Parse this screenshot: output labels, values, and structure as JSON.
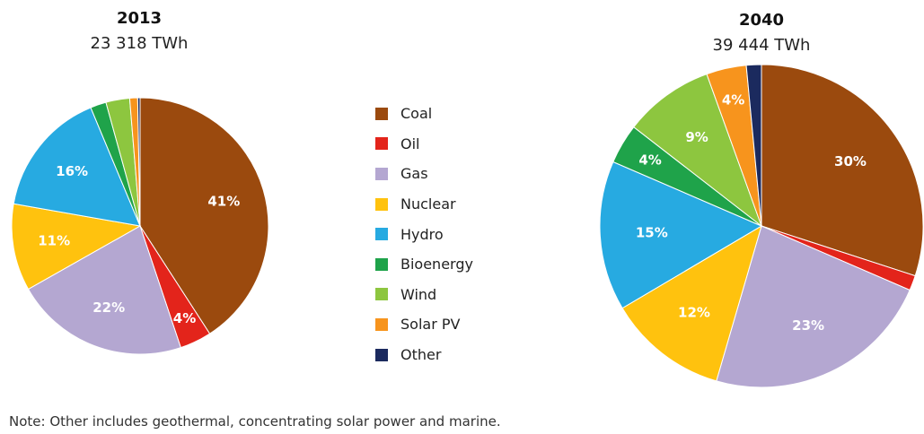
{
  "chart_data": [
    {
      "type": "pie",
      "title": "2013",
      "subtitle": "23 318 TWh",
      "slices": [
        {
          "name": "Coal",
          "value": 41,
          "label": "41%"
        },
        {
          "name": "Oil",
          "value": 4,
          "label": "4%"
        },
        {
          "name": "Gas",
          "value": 22,
          "label": "22%"
        },
        {
          "name": "Nuclear",
          "value": 11,
          "label": "11%"
        },
        {
          "name": "Hydro",
          "value": 16,
          "label": "16%"
        },
        {
          "name": "Bioenergy",
          "value": 2,
          "label": ""
        },
        {
          "name": "Wind",
          "value": 3,
          "label": ""
        },
        {
          "name": "Solar PV",
          "value": 1,
          "label": ""
        },
        {
          "name": "Other",
          "value": 0.3,
          "label": ""
        }
      ]
    },
    {
      "type": "pie",
      "title": "2040",
      "subtitle": "39 444 TWh",
      "slices": [
        {
          "name": "Coal",
          "value": 30,
          "label": "30%"
        },
        {
          "name": "Oil",
          "value": 1.5,
          "label": ""
        },
        {
          "name": "Gas",
          "value": 23,
          "label": "23%"
        },
        {
          "name": "Nuclear",
          "value": 12,
          "label": "12%"
        },
        {
          "name": "Hydro",
          "value": 15,
          "label": "15%"
        },
        {
          "name": "Bioenergy",
          "value": 4,
          "label": "4%"
        },
        {
          "name": "Wind",
          "value": 9,
          "label": "9%"
        },
        {
          "name": "Solar PV",
          "value": 4,
          "label": "4%"
        },
        {
          "name": "Other",
          "value": 1.5,
          "label": ""
        }
      ]
    }
  ],
  "legend": {
    "placement": "center",
    "items": [
      {
        "name": "Coal",
        "color": "#9B4A0E"
      },
      {
        "name": "Oil",
        "color": "#E3241B"
      },
      {
        "name": "Gas",
        "color": "#B4A7D1"
      },
      {
        "name": "Nuclear",
        "color": "#FFC20E"
      },
      {
        "name": "Hydro",
        "color": "#27AAE1"
      },
      {
        "name": "Bioenergy",
        "color": "#1FA34A"
      },
      {
        "name": "Wind",
        "color": "#8DC63F"
      },
      {
        "name": "Solar PV",
        "color": "#F7941D"
      },
      {
        "name": "Other",
        "color": "#1B2A5E"
      }
    ]
  },
  "note": "Note: Other includes geothermal, concentrating solar power and marine."
}
